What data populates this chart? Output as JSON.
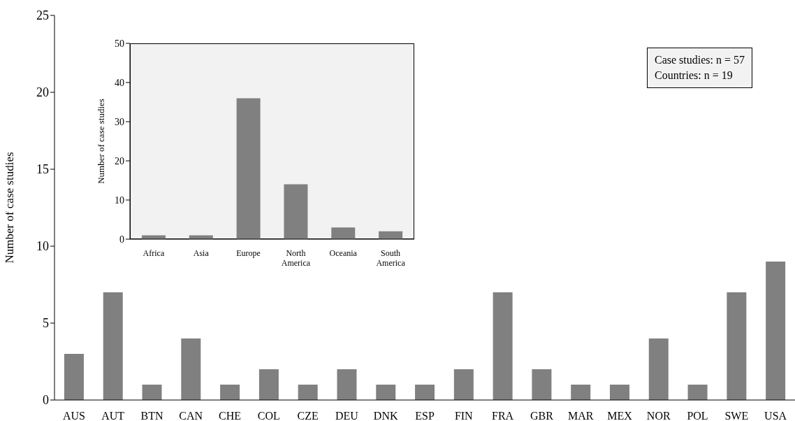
{
  "chart_data": [
    {
      "type": "bar",
      "ylabel": "Number of case studies",
      "categories": [
        "AUS",
        "AUT",
        "BTN",
        "CAN",
        "CHE",
        "COL",
        "CZE",
        "DEU",
        "DNK",
        "ESP",
        "FIN",
        "FRA",
        "GBR",
        "MAR",
        "MEX",
        "NOR",
        "POL",
        "SWE",
        "USA"
      ],
      "values": [
        3,
        7,
        1,
        4,
        1,
        2,
        1,
        2,
        1,
        1,
        2,
        7,
        2,
        1,
        1,
        4,
        1,
        7,
        9
      ],
      "color": "#808080",
      "ylim": [
        0,
        25
      ],
      "yticks": [
        0,
        5,
        10,
        15,
        20,
        25
      ],
      "annotations": [
        "Case studies: n = 57",
        "Countries: n = 19"
      ]
    },
    {
      "type": "bar",
      "ylabel": "Number of case studies",
      "categories": [
        "Africa",
        "Asia",
        "Europe",
        "North America",
        "Oceania",
        "South America"
      ],
      "values": [
        1,
        1,
        36,
        14,
        3,
        2
      ],
      "color": "#808080",
      "ylim": [
        0,
        50
      ],
      "yticks": [
        0,
        10,
        20,
        30,
        40,
        50
      ]
    }
  ]
}
